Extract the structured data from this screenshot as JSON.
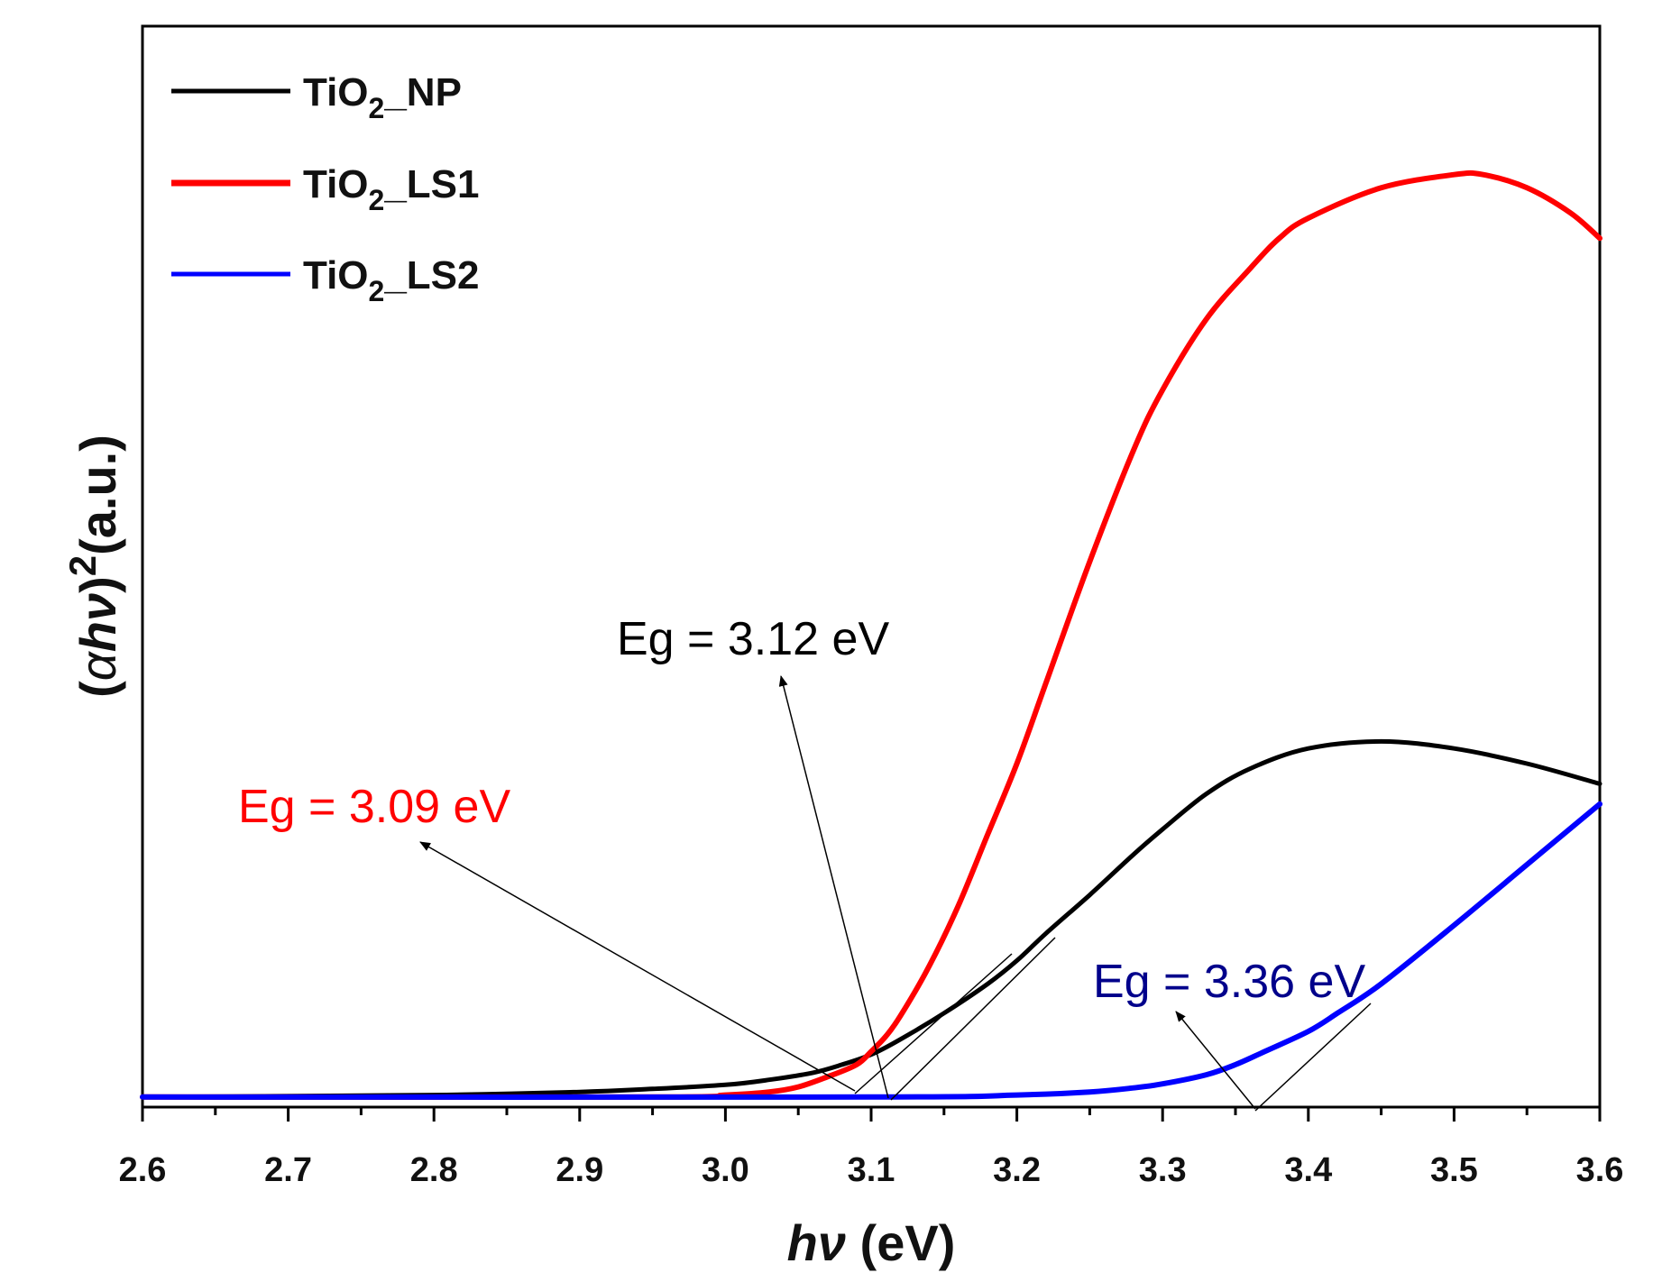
{
  "chart_data": {
    "type": "line",
    "title": "",
    "xlabel": {
      "italic": "hν",
      "plain": " (eV)"
    },
    "ylabel": {
      "open": "(",
      "alpha": "α",
      "hv": "hν",
      "close": ")",
      "sup": "2",
      "units": "(a.u.)"
    },
    "xlim": [
      2.6,
      3.6
    ],
    "ylim": [
      -0.01,
      1.06
    ],
    "xticks": [
      "2.6",
      "2.7",
      "2.8",
      "2.9",
      "3.0",
      "3.1",
      "3.2",
      "3.3",
      "3.4",
      "3.5",
      "3.6"
    ],
    "yticks_shown": false,
    "legend_position": "top-left",
    "series": [
      {
        "name": "TiO2_NP",
        "legend": {
          "base": "TiO",
          "sub": "2",
          "suffix": "_NP"
        },
        "color": "#000000",
        "x": [
          2.6,
          2.8,
          2.9,
          2.95,
          3.0,
          3.03,
          3.06,
          3.08,
          3.1,
          3.12,
          3.15,
          3.18,
          3.2,
          3.22,
          3.25,
          3.28,
          3.3,
          3.33,
          3.36,
          3.4,
          3.45,
          3.5,
          3.55,
          3.6
        ],
        "y": [
          0.0,
          0.002,
          0.005,
          0.008,
          0.012,
          0.017,
          0.024,
          0.032,
          0.042,
          0.057,
          0.083,
          0.112,
          0.135,
          0.162,
          0.2,
          0.24,
          0.265,
          0.3,
          0.325,
          0.345,
          0.352,
          0.345,
          0.33,
          0.31
        ]
      },
      {
        "name": "TiO2_LS1",
        "legend": {
          "base": "TiO",
          "sub": "2",
          "suffix": "_LS1"
        },
        "color": "#ff0000",
        "x": [
          2.6,
          2.95,
          3.0,
          3.03,
          3.05,
          3.07,
          3.09,
          3.1,
          3.11,
          3.12,
          3.14,
          3.16,
          3.18,
          3.2,
          3.22,
          3.25,
          3.28,
          3.3,
          3.33,
          3.36,
          3.38,
          3.4,
          3.45,
          3.5,
          3.52,
          3.55,
          3.58,
          3.6
        ],
        "y": [
          0.0,
          0.0,
          0.002,
          0.005,
          0.01,
          0.02,
          0.032,
          0.045,
          0.06,
          0.08,
          0.13,
          0.19,
          0.26,
          0.33,
          0.41,
          0.53,
          0.64,
          0.7,
          0.77,
          0.82,
          0.85,
          0.87,
          0.9,
          0.913,
          0.913,
          0.9,
          0.875,
          0.85
        ]
      },
      {
        "name": "TiO2_LS2",
        "legend": {
          "base": "TiO",
          "sub": "2",
          "suffix": "_LS2"
        },
        "color": "#0000ff",
        "x": [
          2.6,
          3.1,
          3.2,
          3.25,
          3.28,
          3.3,
          3.33,
          3.35,
          3.37,
          3.4,
          3.42,
          3.45,
          3.5,
          3.55,
          3.6
        ],
        "y": [
          0.0,
          0.0,
          0.002,
          0.005,
          0.009,
          0.013,
          0.022,
          0.032,
          0.045,
          0.065,
          0.083,
          0.112,
          0.17,
          0.23,
          0.29
        ]
      }
    ],
    "annotations": [
      {
        "text": "Eg = 3.09 eV",
        "color": "#ff0000",
        "value": 3.09
      },
      {
        "text": "Eg = 3.12 eV",
        "color": "#000000",
        "value": 3.12
      },
      {
        "text": "Eg = 3.36 eV",
        "color": "#00008b",
        "value": 3.36
      }
    ]
  }
}
